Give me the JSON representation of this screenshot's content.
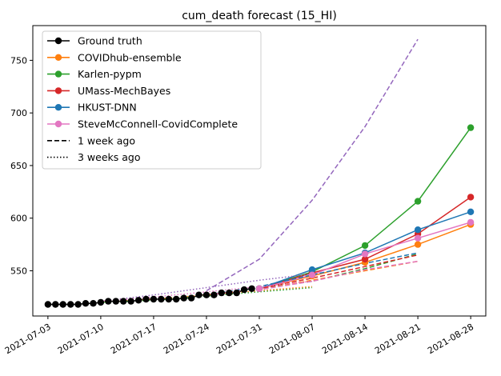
{
  "chart_data": {
    "type": "line",
    "title": "cum_death forecast (15_HI)",
    "xlabel": "",
    "ylabel": "",
    "x_ticks": [
      "2021-07-03",
      "2021-07-10",
      "2021-07-17",
      "2021-07-24",
      "2021-07-31",
      "2021-08-07",
      "2021-08-14",
      "2021-08-21",
      "2021-08-28"
    ],
    "y_ticks": [
      550,
      600,
      650,
      700,
      750
    ],
    "xlim": [
      "2021-07-01",
      "2021-08-30"
    ],
    "ylim": [
      507,
      783
    ],
    "grid": false,
    "legend_position": "top-left",
    "legend": [
      {
        "label": "Ground truth",
        "color": "#000000",
        "style": "solid",
        "marker": true
      },
      {
        "label": "COVIDhub-ensemble",
        "color": "#ff7f0e",
        "style": "solid",
        "marker": true
      },
      {
        "label": "Karlen-pypm",
        "color": "#2ca02c",
        "style": "solid",
        "marker": true
      },
      {
        "label": "UMass-MechBayes",
        "color": "#d62728",
        "style": "solid",
        "marker": true
      },
      {
        "label": "HKUST-DNN",
        "color": "#1f77b4",
        "style": "solid",
        "marker": true
      },
      {
        "label": "SteveMcConnell-CovidComplete",
        "color": "#e377c2",
        "style": "solid",
        "marker": true
      },
      {
        "label": "1 week ago",
        "color": "#000000",
        "style": "dashed",
        "marker": false
      },
      {
        "label": "3 weeks ago",
        "color": "#000000",
        "style": "dotted",
        "marker": false
      }
    ],
    "series": [
      {
        "name": "Ground truth",
        "color": "#000000",
        "style": "solid",
        "marker": true,
        "x": [
          "2021-07-03",
          "2021-07-04",
          "2021-07-05",
          "2021-07-06",
          "2021-07-07",
          "2021-07-08",
          "2021-07-09",
          "2021-07-10",
          "2021-07-11",
          "2021-07-12",
          "2021-07-13",
          "2021-07-14",
          "2021-07-15",
          "2021-07-16",
          "2021-07-17",
          "2021-07-18",
          "2021-07-19",
          "2021-07-20",
          "2021-07-21",
          "2021-07-22",
          "2021-07-23",
          "2021-07-24",
          "2021-07-25",
          "2021-07-26",
          "2021-07-27",
          "2021-07-28",
          "2021-07-29",
          "2021-07-30"
        ],
        "y": [
          518,
          518,
          518,
          518,
          518,
          519,
          519,
          520,
          521,
          521,
          521,
          521,
          522,
          523,
          523,
          523,
          523,
          523,
          524,
          524,
          527,
          527,
          527,
          529,
          529,
          529,
          532,
          533
        ]
      },
      {
        "name": "COVIDhub-ensemble",
        "color": "#ff7f0e",
        "style": "solid",
        "marker": true,
        "x": [
          "2021-07-31",
          "2021-08-07",
          "2021-08-14",
          "2021-08-21",
          "2021-08-28"
        ],
        "y": [
          533,
          545,
          558,
          575,
          594
        ]
      },
      {
        "name": "Karlen-pypm",
        "color": "#2ca02c",
        "style": "solid",
        "marker": true,
        "x": [
          "2021-07-31",
          "2021-08-07",
          "2021-08-14",
          "2021-08-21",
          "2021-08-28"
        ],
        "y": [
          533,
          549,
          574,
          616,
          686
        ]
      },
      {
        "name": "UMass-MechBayes",
        "color": "#d62728",
        "style": "solid",
        "marker": true,
        "x": [
          "2021-07-31",
          "2021-08-07",
          "2021-08-14",
          "2021-08-21",
          "2021-08-28"
        ],
        "y": [
          533,
          548,
          561,
          585,
          620
        ]
      },
      {
        "name": "HKUST-DNN",
        "color": "#1f77b4",
        "style": "solid",
        "marker": true,
        "x": [
          "2021-07-31",
          "2021-08-07",
          "2021-08-14",
          "2021-08-21",
          "2021-08-28"
        ],
        "y": [
          533,
          551,
          567,
          589,
          606
        ]
      },
      {
        "name": "SteveMcConnell-CovidComplete",
        "color": "#e377c2",
        "style": "solid",
        "marker": true,
        "x": [
          "2021-07-31",
          "2021-08-07",
          "2021-08-14",
          "2021-08-21",
          "2021-08-28"
        ],
        "y": [
          533,
          546,
          566,
          581,
          596
        ]
      },
      {
        "color": "#9467bd",
        "style": "dashed",
        "marker": false,
        "x": [
          "2021-07-24",
          "2021-07-31",
          "2021-08-07",
          "2021-08-14",
          "2021-08-21"
        ],
        "y": [
          531,
          561,
          617,
          687,
          770
        ]
      },
      {
        "color": "#1f77b4",
        "style": "dashed",
        "marker": false,
        "x": [
          "2021-07-24",
          "2021-07-31",
          "2021-08-07",
          "2021-08-14",
          "2021-08-21"
        ],
        "y": [
          527,
          535,
          546,
          557,
          567
        ]
      },
      {
        "color": "#2ca02c",
        "style": "dashed",
        "marker": false,
        "x": [
          "2021-07-24",
          "2021-07-31",
          "2021-08-07",
          "2021-08-14",
          "2021-08-21"
        ],
        "y": [
          527,
          533,
          540,
          552,
          566
        ]
      },
      {
        "color": "#ff7f0e",
        "style": "dashed",
        "marker": false,
        "x": [
          "2021-07-24",
          "2021-07-31",
          "2021-08-07",
          "2021-08-14",
          "2021-08-21"
        ],
        "y": [
          527,
          532,
          541,
          550,
          559
        ]
      },
      {
        "color": "#d62728",
        "style": "dashed",
        "marker": false,
        "x": [
          "2021-07-24",
          "2021-07-31",
          "2021-08-07",
          "2021-08-14",
          "2021-08-21"
        ],
        "y": [
          527,
          533,
          543,
          554,
          565
        ]
      },
      {
        "color": "#e377c2",
        "style": "dashed",
        "marker": false,
        "x": [
          "2021-07-24",
          "2021-07-31",
          "2021-08-07",
          "2021-08-14",
          "2021-08-21"
        ],
        "y": [
          527,
          532,
          540,
          551,
          559
        ]
      },
      {
        "color": "#9467bd",
        "style": "dotted",
        "marker": false,
        "x": [
          "2021-07-10",
          "2021-07-17",
          "2021-07-24",
          "2021-07-31",
          "2021-08-07"
        ],
        "y": [
          521,
          527,
          534,
          541,
          547
        ]
      },
      {
        "color": "#e377c2",
        "style": "dotted",
        "marker": false,
        "x": [
          "2021-07-10",
          "2021-07-17",
          "2021-07-24",
          "2021-07-31",
          "2021-08-07"
        ],
        "y": [
          521,
          525,
          530,
          535,
          540
        ]
      },
      {
        "color": "#ff7f0e",
        "style": "dotted",
        "marker": false,
        "x": [
          "2021-07-10",
          "2021-07-17",
          "2021-07-24",
          "2021-07-31",
          "2021-08-07"
        ],
        "y": [
          520,
          523,
          527,
          531,
          535
        ]
      },
      {
        "color": "#2ca02c",
        "style": "dotted",
        "marker": false,
        "x": [
          "2021-07-10",
          "2021-07-17",
          "2021-07-24",
          "2021-07-31",
          "2021-08-07"
        ],
        "y": [
          520,
          522,
          526,
          530,
          534
        ]
      }
    ]
  }
}
